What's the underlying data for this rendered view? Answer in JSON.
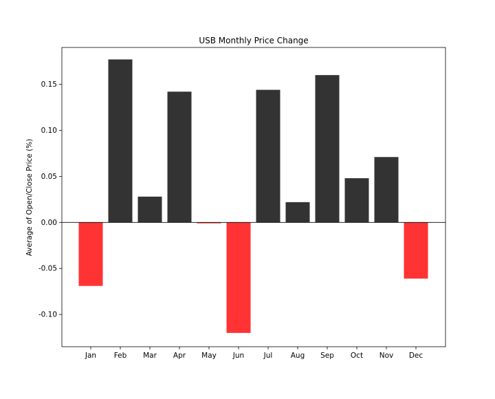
{
  "chart_data": {
    "type": "bar",
    "title": "USB Monthly Price Change",
    "xlabel": "",
    "ylabel": "Average of Open/Close Price (%)",
    "categories": [
      "Jan",
      "Feb",
      "Mar",
      "Apr",
      "May",
      "Jun",
      "Jul",
      "Aug",
      "Sep",
      "Oct",
      "Nov",
      "Dec"
    ],
    "values": [
      -0.069,
      0.177,
      0.028,
      0.142,
      -0.001,
      -0.12,
      0.144,
      0.022,
      0.16,
      0.048,
      0.071,
      -0.061
    ],
    "ylim": [
      -0.135,
      0.19
    ],
    "yticks": [
      -0.1,
      -0.05,
      0.0,
      0.05,
      0.1,
      0.15
    ],
    "ytick_labels": [
      "-0.10",
      "-0.05",
      "0.00",
      "0.05",
      "0.10",
      "0.15"
    ],
    "colors": {
      "positive": "#333333",
      "negative": "#ff3333",
      "zero_line": "#000000"
    },
    "grid": false,
    "legend": "none"
  }
}
